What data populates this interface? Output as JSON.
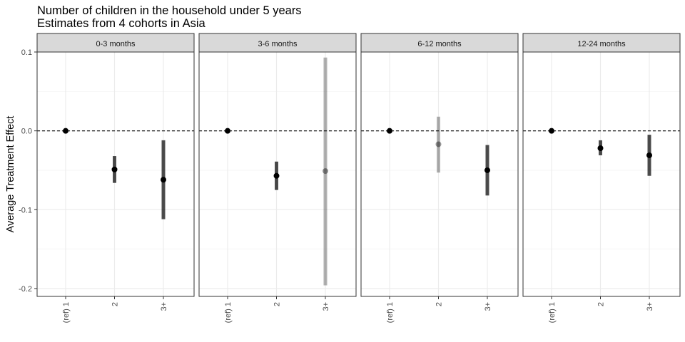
{
  "chart_data": {
    "type": "point-range",
    "title": "Number of children in the household under 5 years",
    "subtitle": "Estimates from 4 cohorts in Asia",
    "ylabel": "Average Treatment Effect",
    "xlabel": "",
    "ylim": [
      -0.21,
      0.1
    ],
    "yticks": [
      0.1,
      0.0,
      -0.1,
      -0.2
    ],
    "ytick_labels": [
      "0.1",
      "0.0",
      "-0.1",
      "-0.2"
    ],
    "categories": [
      "(ref) 1",
      "2",
      "3+"
    ],
    "reference_line": 0,
    "grid": true,
    "colors": {
      "significant": "#000000",
      "not_significant": "#9e9e9e",
      "strip": "#d9d9d9"
    },
    "panels": [
      {
        "label": "0-3 months",
        "points": [
          {
            "category": "(ref) 1",
            "estimate": 0.0,
            "lower": 0.0,
            "upper": 0.0,
            "significant": true
          },
          {
            "category": "2",
            "estimate": -0.049,
            "lower": -0.066,
            "upper": -0.032,
            "significant": true
          },
          {
            "category": "3+",
            "estimate": -0.062,
            "lower": -0.112,
            "upper": -0.012,
            "significant": true
          }
        ]
      },
      {
        "label": "3-6 months",
        "points": [
          {
            "category": "(ref) 1",
            "estimate": 0.0,
            "lower": 0.0,
            "upper": 0.0,
            "significant": true
          },
          {
            "category": "2",
            "estimate": -0.057,
            "lower": -0.075,
            "upper": -0.039,
            "significant": true
          },
          {
            "category": "3+",
            "estimate": -0.051,
            "lower": -0.196,
            "upper": 0.093,
            "significant": false
          }
        ]
      },
      {
        "label": "6-12 months",
        "points": [
          {
            "category": "(ref) 1",
            "estimate": 0.0,
            "lower": 0.0,
            "upper": 0.0,
            "significant": true
          },
          {
            "category": "2",
            "estimate": -0.017,
            "lower": -0.053,
            "upper": 0.018,
            "significant": false
          },
          {
            "category": "3+",
            "estimate": -0.05,
            "lower": -0.082,
            "upper": -0.018,
            "significant": true
          }
        ]
      },
      {
        "label": "12-24 months",
        "points": [
          {
            "category": "(ref) 1",
            "estimate": 0.0,
            "lower": 0.0,
            "upper": 0.0,
            "significant": true
          },
          {
            "category": "2",
            "estimate": -0.022,
            "lower": -0.031,
            "upper": -0.012,
            "significant": true
          },
          {
            "category": "3+",
            "estimate": -0.031,
            "lower": -0.057,
            "upper": -0.005,
            "significant": true
          }
        ]
      }
    ]
  }
}
